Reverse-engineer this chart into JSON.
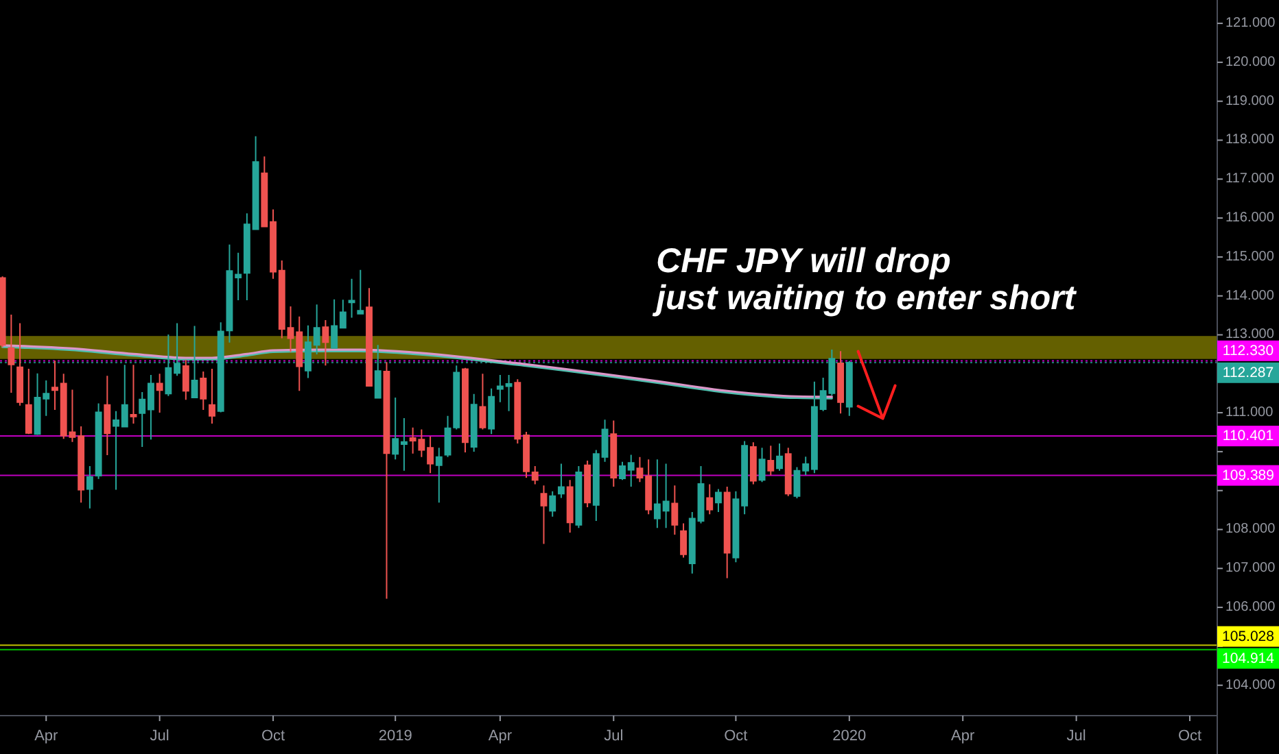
{
  "chart_data": {
    "type": "candlestick",
    "x": [
      "2018-02-26",
      "2018-03-05",
      "2018-03-12",
      "2018-03-19",
      "2018-03-26",
      "2018-04-02",
      "2018-04-09",
      "2018-04-16",
      "2018-04-23",
      "2018-04-30",
      "2018-05-07",
      "2018-05-14",
      "2018-05-21",
      "2018-05-28",
      "2018-06-04",
      "2018-06-11",
      "2018-06-18",
      "2018-06-25",
      "2018-07-02",
      "2018-07-09",
      "2018-07-16",
      "2018-07-23",
      "2018-07-30",
      "2018-08-06",
      "2018-08-13",
      "2018-08-20",
      "2018-08-27",
      "2018-09-03",
      "2018-09-10",
      "2018-09-17",
      "2018-09-24",
      "2018-10-01",
      "2018-10-08",
      "2018-10-15",
      "2018-10-22",
      "2018-10-29",
      "2018-11-05",
      "2018-11-12",
      "2018-11-19",
      "2018-11-26",
      "2018-12-03",
      "2018-12-10",
      "2018-12-17",
      "2018-12-24",
      "2018-12-31",
      "2019-01-07",
      "2019-01-14",
      "2019-01-21",
      "2019-01-28",
      "2019-02-04",
      "2019-02-11",
      "2019-02-18",
      "2019-02-25",
      "2019-03-04",
      "2019-03-11",
      "2019-03-18",
      "2019-03-25",
      "2019-04-01",
      "2019-04-08",
      "2019-04-15",
      "2019-04-22",
      "2019-04-29",
      "2019-05-06",
      "2019-05-13",
      "2019-05-20",
      "2019-05-27",
      "2019-06-03",
      "2019-06-10",
      "2019-06-17",
      "2019-06-24",
      "2019-07-01",
      "2019-07-08",
      "2019-07-15",
      "2019-07-22",
      "2019-07-29",
      "2019-08-05",
      "2019-08-12",
      "2019-08-19",
      "2019-08-26",
      "2019-09-02",
      "2019-09-09",
      "2019-09-16",
      "2019-09-23",
      "2019-09-30",
      "2019-10-07",
      "2019-10-14",
      "2019-10-21",
      "2019-10-28",
      "2019-11-04",
      "2019-11-11",
      "2019-11-18",
      "2019-11-25",
      "2019-12-02",
      "2019-12-09",
      "2019-12-16",
      "2019-12-23",
      "2019-12-30",
      "2020-01-06"
    ],
    "ohlc": [
      [
        114.46,
        114.5,
        112.68,
        112.74
      ],
      [
        112.66,
        113.52,
        111.51,
        112.24
      ],
      [
        112.17,
        113.3,
        111.18,
        111.27
      ],
      [
        111.2,
        112.13,
        110.45,
        110.48
      ],
      [
        110.45,
        112.01,
        110.43,
        111.39
      ],
      [
        111.36,
        111.83,
        110.92,
        111.49
      ],
      [
        111.65,
        112.34,
        111.07,
        111.58
      ],
      [
        111.75,
        112.0,
        110.33,
        110.41
      ],
      [
        110.5,
        111.59,
        110.25,
        110.37
      ],
      [
        110.4,
        110.65,
        108.69,
        109.02
      ],
      [
        109.04,
        109.63,
        108.54,
        109.35
      ],
      [
        109.38,
        111.24,
        109.3,
        111.01
      ],
      [
        111.2,
        111.95,
        109.91,
        110.47
      ],
      [
        110.66,
        111.04,
        109.02,
        110.81
      ],
      [
        110.64,
        112.23,
        110.64,
        111.2
      ],
      [
        110.95,
        112.23,
        110.72,
        110.9
      ],
      [
        110.99,
        111.53,
        110.12,
        111.34
      ],
      [
        111.08,
        111.97,
        110.31,
        111.75
      ],
      [
        111.75,
        112.0,
        111.0,
        111.58
      ],
      [
        111.49,
        113.01,
        111.43,
        112.15
      ],
      [
        112.02,
        113.3,
        111.95,
        112.26
      ],
      [
        112.2,
        112.36,
        111.33,
        111.56
      ],
      [
        111.39,
        113.23,
        111.39,
        111.83
      ],
      [
        111.88,
        112.06,
        111.07,
        111.36
      ],
      [
        111.2,
        112.13,
        110.72,
        110.92
      ],
      [
        111.04,
        113.32,
        111.01,
        113.09
      ],
      [
        113.11,
        115.32,
        112.8,
        114.64
      ],
      [
        114.47,
        115.11,
        113.89,
        114.55
      ],
      [
        114.59,
        116.12,
        113.89,
        115.84
      ],
      [
        115.71,
        118.1,
        115.71,
        117.44
      ],
      [
        117.15,
        117.58,
        115.78,
        115.78
      ],
      [
        115.9,
        116.22,
        114.44,
        114.62
      ],
      [
        114.65,
        114.91,
        112.91,
        113.15
      ],
      [
        113.18,
        113.73,
        112.56,
        112.91
      ],
      [
        113.07,
        113.47,
        111.56,
        112.19
      ],
      [
        112.08,
        113.24,
        111.89,
        112.81
      ],
      [
        112.74,
        113.78,
        112.5,
        113.18
      ],
      [
        113.2,
        113.38,
        112.21,
        112.81
      ],
      [
        112.66,
        113.91,
        112.66,
        113.23
      ],
      [
        113.18,
        113.9,
        113.18,
        113.58
      ],
      [
        113.83,
        114.44,
        113.44,
        113.88
      ],
      [
        113.54,
        114.67,
        113.54,
        113.62
      ],
      [
        113.71,
        114.2,
        111.69,
        111.69
      ],
      [
        111.38,
        112.74,
        111.38,
        112.07
      ],
      [
        112.06,
        112.3,
        106.22,
        109.96
      ],
      [
        109.94,
        111.39,
        109.8,
        110.33
      ],
      [
        110.19,
        110.86,
        109.51,
        110.25
      ],
      [
        110.35,
        110.62,
        109.95,
        110.28
      ],
      [
        110.31,
        110.57,
        109.86,
        110.04
      ],
      [
        110.1,
        110.39,
        109.45,
        109.69
      ],
      [
        109.65,
        110.1,
        108.69,
        109.86
      ],
      [
        109.92,
        110.92,
        109.86,
        110.6
      ],
      [
        110.62,
        112.21,
        110.57,
        112.03
      ],
      [
        112.12,
        112.15,
        109.98,
        110.24
      ],
      [
        110.12,
        111.48,
        110.0,
        111.21
      ],
      [
        111.15,
        112.0,
        110.57,
        110.62
      ],
      [
        110.59,
        111.62,
        110.45,
        111.41
      ],
      [
        111.61,
        111.97,
        111.27,
        111.68
      ],
      [
        111.68,
        111.97,
        111.04,
        111.74
      ],
      [
        111.77,
        111.86,
        110.21,
        110.33
      ],
      [
        110.42,
        110.51,
        109.33,
        109.49
      ],
      [
        109.47,
        109.63,
        109.16,
        109.27
      ],
      [
        108.92,
        109.13,
        107.63,
        108.61
      ],
      [
        108.48,
        108.98,
        108.33,
        108.86
      ],
      [
        108.92,
        109.69,
        108.81,
        109.09
      ],
      [
        109.09,
        109.27,
        107.92,
        108.18
      ],
      [
        108.12,
        109.63,
        108.04,
        109.47
      ],
      [
        109.65,
        109.77,
        108.57,
        108.69
      ],
      [
        108.63,
        110.04,
        108.22,
        109.94
      ],
      [
        109.86,
        110.82,
        109.74,
        110.57
      ],
      [
        110.45,
        110.8,
        109.1,
        109.33
      ],
      [
        109.31,
        109.74,
        109.27,
        109.63
      ],
      [
        109.53,
        109.92,
        109.1,
        109.71
      ],
      [
        109.57,
        109.86,
        109.22,
        109.33
      ],
      [
        109.37,
        109.8,
        108.39,
        108.51
      ],
      [
        108.28,
        109.8,
        108.04,
        108.65
      ],
      [
        108.48,
        109.69,
        108.04,
        108.72
      ],
      [
        108.67,
        109.13,
        107.87,
        108.12
      ],
      [
        107.96,
        108.16,
        107.28,
        107.36
      ],
      [
        107.13,
        108.45,
        106.87,
        108.28
      ],
      [
        108.22,
        109.63,
        108.16,
        109.17
      ],
      [
        108.81,
        109.16,
        108.39,
        108.51
      ],
      [
        108.69,
        109.04,
        108.45,
        108.95
      ],
      [
        108.95,
        109.1,
        106.75,
        107.4
      ],
      [
        107.28,
        108.98,
        107.16,
        108.78
      ],
      [
        108.61,
        110.27,
        108.39,
        110.15
      ],
      [
        110.12,
        110.24,
        109.16,
        109.25
      ],
      [
        109.27,
        110.1,
        109.22,
        109.8
      ],
      [
        109.77,
        110.15,
        109.39,
        109.51
      ],
      [
        109.57,
        110.21,
        109.51,
        109.88
      ],
      [
        109.94,
        110.1,
        108.86,
        108.92
      ],
      [
        108.86,
        109.6,
        108.8,
        109.51
      ],
      [
        109.51,
        109.87,
        109.4,
        109.68
      ],
      [
        109.55,
        111.8,
        109.45,
        111.15
      ],
      [
        111.09,
        111.9,
        111.04,
        111.56
      ],
      [
        111.5,
        112.62,
        111.44,
        112.39
      ],
      [
        112.27,
        112.58,
        110.98,
        111.27
      ],
      [
        111.15,
        112.33,
        110.92,
        112.287
      ]
    ],
    "series": [
      {
        "type": "line",
        "color": "#4fbfae",
        "x": [
          "2018-02-26",
          "2018-04-23",
          "2018-06-11",
          "2018-07-23",
          "2018-08-13",
          "2018-09-10",
          "2018-10-01",
          "2018-11-05",
          "2018-12-10",
          "2019-01-21",
          "2019-04-15",
          "2019-08-05",
          "2019-09-30",
          "2019-11-25",
          "2019-12-23"
        ],
        "values": [
          112.69,
          112.61,
          112.47,
          112.37,
          112.37,
          112.47,
          112.56,
          112.58,
          112.58,
          112.51,
          112.23,
          111.77,
          111.52,
          111.38,
          111.37
        ]
      },
      {
        "type": "line",
        "color": "#dc96c8",
        "x": [
          "2018-02-26",
          "2018-04-23",
          "2018-06-11",
          "2018-07-23",
          "2018-08-13",
          "2018-09-10",
          "2018-10-01",
          "2018-11-05",
          "2018-12-10",
          "2019-01-21",
          "2019-04-15",
          "2019-08-05",
          "2019-09-30",
          "2019-11-25",
          "2019-12-23"
        ],
        "values": [
          112.73,
          112.65,
          112.51,
          112.41,
          112.41,
          112.51,
          112.6,
          112.62,
          112.62,
          112.55,
          112.27,
          111.81,
          111.56,
          111.42,
          111.41
        ]
      }
    ],
    "xlim": [
      "2018-02-24",
      "2020-10-27"
    ],
    "xticks": [
      {
        "value": "2018-04-02",
        "label": "Apr"
      },
      {
        "value": "2018-07-02",
        "label": "Jul"
      },
      {
        "value": "2018-10-01",
        "label": "Oct"
      },
      {
        "value": "2019-01-07",
        "label": "2019"
      },
      {
        "value": "2019-04-01",
        "label": "Apr"
      },
      {
        "value": "2019-07-01",
        "label": "Jul"
      },
      {
        "value": "2019-10-07",
        "label": "Oct"
      },
      {
        "value": "2020-01-06",
        "label": "2020"
      },
      {
        "value": "2020-04-06",
        "label": "Apr"
      },
      {
        "value": "2020-07-06",
        "label": "Jul"
      },
      {
        "value": "2020-10-05",
        "label": "Oct"
      }
    ],
    "ylim": [
      103.22,
      121.6
    ],
    "yticks": [
      {
        "value": 104,
        "label": "104.000"
      },
      {
        "value": 105,
        "label": null
      },
      {
        "value": 106,
        "label": "106.000"
      },
      {
        "value": 107,
        "label": "107.000"
      },
      {
        "value": 108,
        "label": "108.000"
      },
      {
        "value": 109,
        "label": null
      },
      {
        "value": 110,
        "label": null
      },
      {
        "value": 111,
        "label": "111.000"
      },
      {
        "value": 112,
        "label": null
      },
      {
        "value": 113,
        "label": "113.000"
      },
      {
        "value": 114,
        "label": "114.000"
      },
      {
        "value": 115,
        "label": "115.000"
      },
      {
        "value": 116,
        "label": "116.000"
      },
      {
        "value": 117,
        "label": "117.000"
      },
      {
        "value": 118,
        "label": "118.000"
      },
      {
        "value": 119,
        "label": "119.000"
      },
      {
        "value": 120,
        "label": "120.000"
      },
      {
        "value": 121,
        "label": "121.000"
      }
    ],
    "ref_lines": [
      {
        "axis": "y",
        "value": 112.33,
        "label": "112.330",
        "color": "#ff00ff",
        "line_style": "dotted"
      },
      {
        "axis": "y",
        "value": 112.287,
        "label": "112.287",
        "color": "#26a69a",
        "line_style": "dotted"
      },
      {
        "axis": "y",
        "value": 110.401,
        "label": "110.401",
        "color": "#ff00ff",
        "line_style": "solid"
      },
      {
        "axis": "y",
        "value": 109.389,
        "label": "109.389",
        "color": "#ff00ff",
        "line_style": "solid"
      },
      {
        "axis": "y",
        "value": 105.028,
        "label": "105.028",
        "color": "#ffff00",
        "line_style": "solid"
      },
      {
        "axis": "y",
        "value": 104.914,
        "label": "104.914",
        "color": "#00ff00",
        "line_style": "solid"
      }
    ],
    "bands": [
      {
        "axis": "y",
        "from": 112.38,
        "to": 112.97,
        "color": "#646000"
      }
    ],
    "annotations": [
      "CHF JPY will drop\njust waiting to enter short"
    ]
  }
}
